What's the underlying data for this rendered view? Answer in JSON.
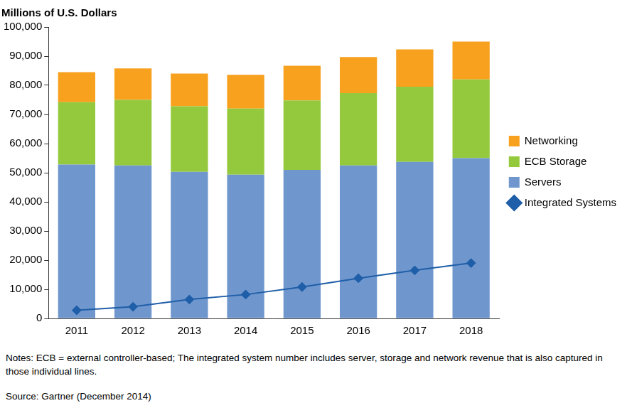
{
  "chart_data": {
    "type": "bar",
    "ylabel": "Millions of U.S. Dollars",
    "categories": [
      "2011",
      "2012",
      "2013",
      "2014",
      "2015",
      "2016",
      "2017",
      "2018"
    ],
    "series": [
      {
        "name": "Servers",
        "type": "bar",
        "color": "#6f97cd",
        "values": [
          52800,
          52500,
          50300,
          49300,
          51000,
          52500,
          53700,
          55000
        ]
      },
      {
        "name": "ECB Storage",
        "type": "bar",
        "color": "#95c93d",
        "values": [
          21400,
          22500,
          22500,
          22700,
          23800,
          24800,
          25800,
          27000
        ]
      },
      {
        "name": "Networking",
        "type": "bar",
        "color": "#f7a11e",
        "values": [
          10300,
          10800,
          11200,
          11600,
          11900,
          12400,
          12800,
          13000
        ]
      },
      {
        "name": "Integrated Systems",
        "type": "line",
        "color": "#1f5ea8",
        "marker": "diamond",
        "values": [
          2800,
          4000,
          6500,
          8200,
          10800,
          13800,
          16500,
          19000
        ]
      }
    ],
    "stacked": true,
    "ylim": [
      0,
      100000
    ],
    "yticks": [
      0,
      {
        "value": 10000,
        "label": "10,000"
      },
      {
        "value": 20000,
        "label": "20,000"
      },
      {
        "value": 30000,
        "label": "30,000"
      },
      {
        "value": 40000,
        "label": "40,000"
      },
      {
        "value": 50000,
        "label": "50,000"
      },
      {
        "value": 60000,
        "label": "60,000"
      },
      {
        "value": 70000,
        "label": "70,000"
      },
      {
        "value": 80000,
        "label": "80,000"
      },
      {
        "value": 90000,
        "label": "90,000"
      },
      {
        "value": 100000,
        "label": "100,000"
      }
    ],
    "grid": false,
    "legend": "right",
    "notes": "Notes: ECB = external controller-based; The integrated system number includes server, storage and network revenue that is also captured in those individual lines.",
    "source": "Source: Gartner (December 2014)"
  }
}
